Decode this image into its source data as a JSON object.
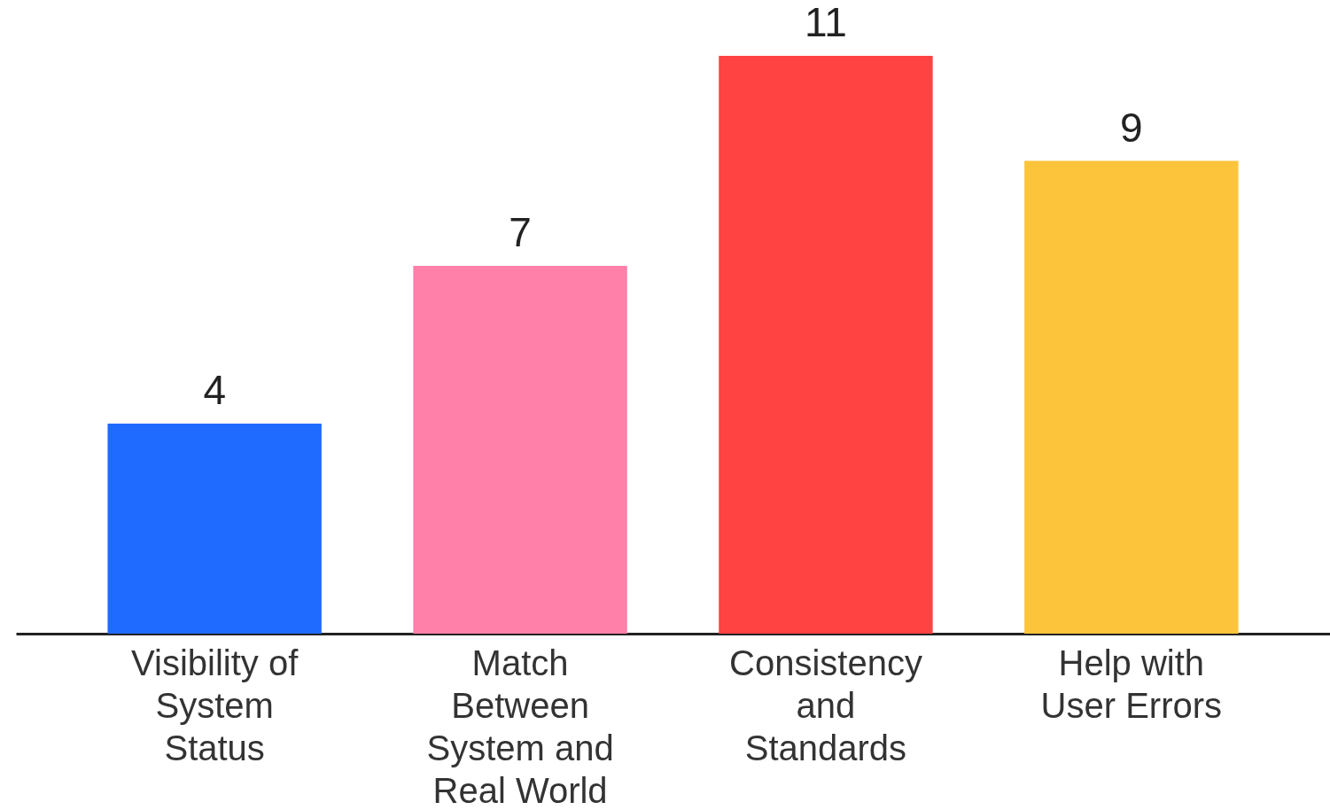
{
  "chart_data": {
    "type": "bar",
    "categories": [
      "Visibility of System Status",
      "Match Between System and Real World",
      "Consistency and Standards",
      "Help with User Errors"
    ],
    "values": [
      4,
      7,
      11,
      9
    ],
    "colors": [
      "#1f6bff",
      "#ff80a8",
      "#ff4242",
      "#fcc43a"
    ],
    "data_labels": true
  }
}
